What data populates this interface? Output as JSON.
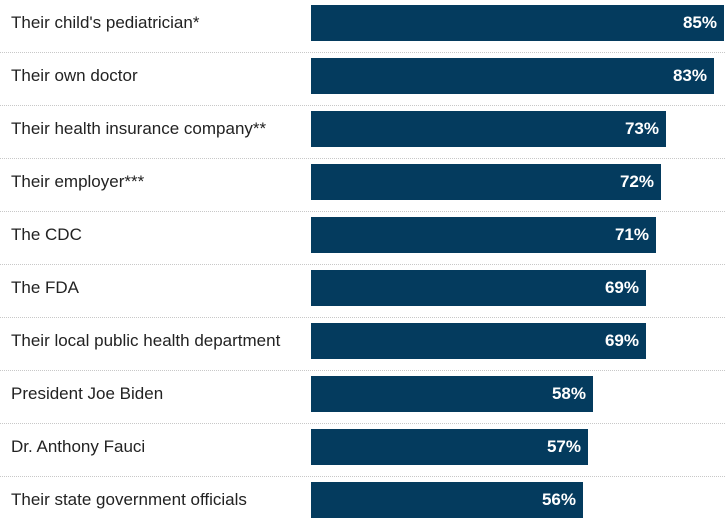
{
  "chart_data": {
    "type": "bar",
    "orientation": "horizontal",
    "categories": [
      "Their child's pediatrician*",
      "Their own doctor",
      "Their health insurance company**",
      "Their employer***",
      "The CDC",
      "The FDA",
      "Their local public health department",
      "President Joe Biden",
      "Dr. Anthony Fauci",
      "Their state government officials"
    ],
    "values": [
      85,
      83,
      73,
      72,
      71,
      69,
      69,
      58,
      57,
      56
    ],
    "value_labels": [
      "85%",
      "83%",
      "73%",
      "72%",
      "71%",
      "69%",
      "69%",
      "58%",
      "57%",
      "56%"
    ],
    "unit": "%",
    "bar_color": "#043b5e",
    "grid": false,
    "legend": "none"
  }
}
